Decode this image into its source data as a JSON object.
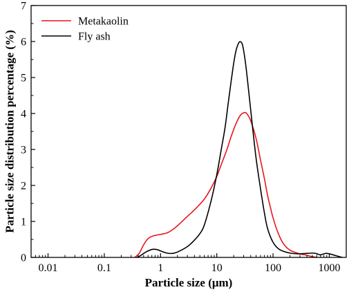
{
  "chart_data": {
    "type": "line",
    "title": "",
    "xlabel": "Particle size (μm)",
    "ylabel": "Particle size distribution percentage (%)",
    "x_scale": "log",
    "xlim": [
      0.005,
      2000
    ],
    "ylim": [
      0,
      7
    ],
    "x_ticks": [
      0.01,
      0.1,
      1,
      10,
      100,
      1000
    ],
    "x_tick_labels": [
      "0.01",
      "0.1",
      "1",
      "10",
      "100",
      "1000"
    ],
    "y_ticks": [
      0,
      1,
      2,
      3,
      4,
      5,
      6,
      7
    ],
    "y_tick_labels": [
      "0",
      "1",
      "2",
      "3",
      "4",
      "5",
      "6",
      "7"
    ],
    "grid": false,
    "legend_position": "top-left",
    "series": [
      {
        "name": "Metakaolin",
        "color": "#e8141c",
        "points": [
          [
            0.35,
            0.0
          ],
          [
            0.42,
            0.12
          ],
          [
            0.5,
            0.35
          ],
          [
            0.6,
            0.52
          ],
          [
            0.75,
            0.6
          ],
          [
            1.0,
            0.64
          ],
          [
            1.3,
            0.68
          ],
          [
            1.6,
            0.76
          ],
          [
            2.0,
            0.88
          ],
          [
            3.0,
            1.14
          ],
          [
            4.0,
            1.32
          ],
          [
            6.0,
            1.62
          ],
          [
            8.0,
            1.94
          ],
          [
            10.0,
            2.25
          ],
          [
            12.0,
            2.58
          ],
          [
            15.0,
            2.98
          ],
          [
            18.0,
            3.36
          ],
          [
            22.0,
            3.72
          ],
          [
            26.0,
            3.94
          ],
          [
            30.0,
            4.02
          ],
          [
            34.0,
            4.0
          ],
          [
            40.0,
            3.8
          ],
          [
            50.0,
            3.3
          ],
          [
            60.0,
            2.7
          ],
          [
            70.0,
            2.2
          ],
          [
            80.0,
            1.72
          ],
          [
            90.0,
            1.38
          ],
          [
            100.0,
            1.1
          ],
          [
            120.0,
            0.72
          ],
          [
            150.0,
            0.4
          ],
          [
            200.0,
            0.2
          ],
          [
            300.0,
            0.1
          ],
          [
            400.0,
            0.06
          ],
          [
            500.0,
            0.02
          ],
          [
            600.0,
            0.0
          ]
        ]
      },
      {
        "name": "Fly ash",
        "color": "#000000",
        "points": [
          [
            0.38,
            0.0
          ],
          [
            0.45,
            0.06
          ],
          [
            0.55,
            0.15
          ],
          [
            0.7,
            0.22
          ],
          [
            0.85,
            0.22
          ],
          [
            1.0,
            0.18
          ],
          [
            1.3,
            0.12
          ],
          [
            1.6,
            0.11
          ],
          [
            2.0,
            0.15
          ],
          [
            3.0,
            0.3
          ],
          [
            4.0,
            0.48
          ],
          [
            5.0,
            0.66
          ],
          [
            6.0,
            0.9
          ],
          [
            8.0,
            1.6
          ],
          [
            10.0,
            2.3
          ],
          [
            12.0,
            3.0
          ],
          [
            14.0,
            3.6
          ],
          [
            16.0,
            4.3
          ],
          [
            18.0,
            4.9
          ],
          [
            20.0,
            5.4
          ],
          [
            22.0,
            5.75
          ],
          [
            25.0,
            5.98
          ],
          [
            28.0,
            5.95
          ],
          [
            30.0,
            5.75
          ],
          [
            33.0,
            5.3
          ],
          [
            37.0,
            4.6
          ],
          [
            42.0,
            3.8
          ],
          [
            50.0,
            2.75
          ],
          [
            60.0,
            1.9
          ],
          [
            70.0,
            1.25
          ],
          [
            80.0,
            0.8
          ],
          [
            100.0,
            0.42
          ],
          [
            130.0,
            0.22
          ],
          [
            200.0,
            0.12
          ],
          [
            300.0,
            0.1
          ],
          [
            500.0,
            0.12
          ],
          [
            600.0,
            0.1
          ],
          [
            700.0,
            0.07
          ],
          [
            850.0,
            0.11
          ],
          [
            1000.0,
            0.1
          ],
          [
            1300.0,
            0.05
          ],
          [
            1700.0,
            0.0
          ]
        ]
      }
    ]
  }
}
